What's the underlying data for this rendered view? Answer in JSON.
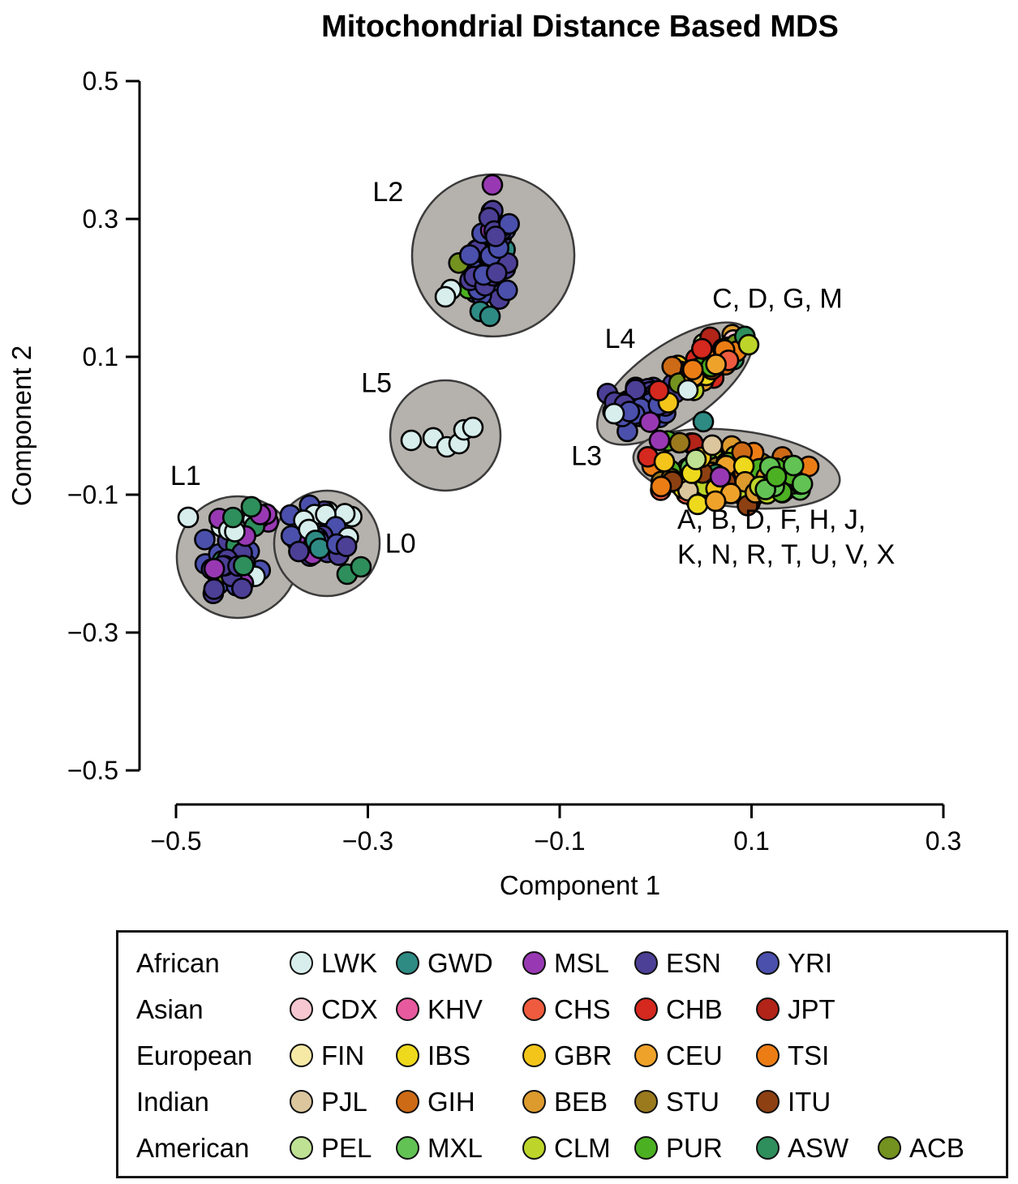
{
  "chart_data": {
    "type": "scatter",
    "title": "Mitochondrial Distance Based MDS",
    "xlabel": "Component 1",
    "ylabel": "Component 2",
    "xlim": [
      -0.58,
      0.38
    ],
    "ylim": [
      -0.5,
      0.5
    ],
    "xticks": [
      -0.5,
      -0.3,
      -0.1,
      0.1,
      0.3
    ],
    "xtick_labels": [
      "−0.5",
      "−0.3",
      "−0.1",
      "0.1",
      "0.3"
    ],
    "yticks": [
      0.5,
      0.3,
      0.1,
      -0.1,
      -0.3,
      -0.5
    ],
    "ytick_labels": [
      "0.5",
      "0.3",
      "0.1",
      "−0.1",
      "−0.3",
      "−0.5"
    ],
    "grid": false,
    "legend_position": "bottom-box",
    "render_seed": 20240613,
    "clusters": [
      {
        "id": "L1",
        "label": "L1",
        "cx": -0.4358,
        "cy": -0.1906,
        "rx": 0.0634,
        "ry": 0.0882,
        "rot": 0,
        "label_x": -0.49,
        "label_y": -0.086,
        "label_anchor": "middle"
      },
      {
        "id": "L0",
        "label": "L0",
        "cx": -0.3427,
        "cy": -0.1706,
        "rx": 0.055,
        "ry": 0.0765,
        "rot": 0,
        "label_x": -0.266,
        "label_y": -0.184,
        "label_anchor": "middle"
      },
      {
        "id": "L2",
        "label": "L2",
        "cx": -0.1693,
        "cy": 0.2471,
        "rx": 0.0846,
        "ry": 0.1176,
        "rot": 0,
        "label_x": -0.279,
        "label_y": 0.326,
        "label_anchor": "middle"
      },
      {
        "id": "L5",
        "label": "L5",
        "cx": -0.2192,
        "cy": -0.0141,
        "rx": 0.0575,
        "ry": 0.08,
        "rot": 0,
        "label_x": -0.291,
        "label_y": 0.049,
        "label_anchor": "middle"
      },
      {
        "id": "L4",
        "label": "L4",
        "cx": 0.0201,
        "cy": 0.0612,
        "rx": 0.0947,
        "ry": 0.0565,
        "rot": -35,
        "label_x": -0.037,
        "label_y": 0.113,
        "label_anchor": "middle"
      },
      {
        "id": "L3",
        "label": "L3",
        "cx": 0.0844,
        "cy": -0.0624,
        "rx": 0.1083,
        "ry": 0.0553,
        "rot": 7,
        "label_x": -0.072,
        "label_y": -0.057,
        "label_anchor": "middle"
      }
    ],
    "annotations": [
      {
        "id": "cdgm",
        "text": "C, D, G, M",
        "x": 0.127,
        "y": 0.171,
        "anchor": "middle"
      },
      {
        "id": "haplogroups-line1",
        "text": "A, B, D, F, H, J,",
        "x": 0.0226,
        "y": -0.1494,
        "anchor": "start"
      },
      {
        "id": "haplogroups-line2",
        "text": "K, N, R, T, U, V, X",
        "x": 0.0226,
        "y": -0.2,
        "anchor": "start"
      }
    ],
    "point_groups": [
      {
        "cluster": "L2",
        "n": 48,
        "cx": -0.1761,
        "cy": 0.2271,
        "sx": 0.0254,
        "sy": 0.0494,
        "rot": 0,
        "palette": {
          "YRI": 37,
          "ESN": 37,
          "MSL": 8,
          "GWD": 8,
          "ACB": 6,
          "PUR": 4
        }
      },
      {
        "cluster": "L2",
        "n": 16,
        "cx": -0.166,
        "cy": 0.2824,
        "sx": 0.0152,
        "sy": 0.0294,
        "rot": 0,
        "palette": {
          "YRI": 50,
          "ESN": 40,
          "MSL": 10
        }
      },
      {
        "cluster": "L1",
        "n": 42,
        "cx": -0.44,
        "cy": -0.2059,
        "sx": 0.0271,
        "sy": 0.0353,
        "rot": 0,
        "palette": {
          "ESN": 42,
          "YRI": 28,
          "MSL": 12,
          "ACB": 10,
          "ASW": 4,
          "LWK": 4
        }
      },
      {
        "cluster": "L1",
        "n": 14,
        "cx": -0.4298,
        "cy": -0.1471,
        "sx": 0.0355,
        "sy": 0.0188,
        "rot": 0,
        "palette": {
          "LWK": 50,
          "MSL": 22,
          "ACB": 14,
          "ASW": 14
        }
      },
      {
        "cluster": "L0",
        "n": 13,
        "cx": -0.352,
        "cy": -0.1271,
        "sx": 0.0321,
        "sy": 0.0153,
        "rot": 0,
        "palette": {
          "LWK": 66,
          "ESN": 17,
          "YRI": 17
        }
      },
      {
        "cluster": "L0",
        "n": 26,
        "cx": -0.3554,
        "cy": -0.1682,
        "sx": 0.0304,
        "sy": 0.0212,
        "rot": 0,
        "palette": {
          "ESN": 38,
          "YRI": 38,
          "LWK": 12,
          "MSL": 6,
          "GWD": 6
        }
      },
      {
        "cluster": "L4",
        "n": 44,
        "cx": -0.0112,
        "cy": 0.0353,
        "sx": 0.0372,
        "sy": 0.0294,
        "rot": -20,
        "palette": {
          "ESN": 44,
          "YRI": 44,
          "GWD": 5,
          "MSL": 3,
          "LWK": 4
        }
      },
      {
        "cluster": "L4",
        "n": 58,
        "cx": 0.0488,
        "cy": 0.0906,
        "sx": 0.0474,
        "sy": 0.0294,
        "rot": -33,
        "palette": {
          "MXL": 11,
          "PUR": 10,
          "ASW": 9,
          "ACB": 7,
          "CLM": 6,
          "PEL": 3,
          "TSI": 8,
          "CEU": 7,
          "GBR": 5,
          "IBS": 5,
          "FIN": 2,
          "CHB": 6,
          "JPT": 4,
          "CHS": 4,
          "CDX": 3,
          "KHV": 2,
          "GIH": 5,
          "STU": 4,
          "BEB": 4,
          "ITU": 3,
          "PJL": 2
        }
      },
      {
        "cluster": "L3",
        "n": 95,
        "cx": 0.0759,
        "cy": -0.0671,
        "sx": 0.0778,
        "sy": 0.0388,
        "rot": 7,
        "palette": {
          "TSI": 12,
          "CEU": 11,
          "GBR": 7,
          "IBS": 7,
          "FIN": 2,
          "GIH": 6,
          "BEB": 6,
          "STU": 5,
          "ITU": 4,
          "PJL": 3,
          "MXL": 7,
          "PUR": 7,
          "CLM": 6,
          "ASW": 4,
          "ACB": 4,
          "PEL": 2,
          "CHB": 3,
          "JPT": 2,
          "CHS": 3,
          "KHV": 1,
          "CDX": 1,
          "MSL": 2,
          "GWD": 2
        }
      },
      {
        "cluster": "L3",
        "n": 20,
        "cx": 0.13,
        "cy": -0.0788,
        "sx": 0.0355,
        "sy": 0.0306,
        "rot": 0,
        "palette": {
          "MXL": 32,
          "PUR": 34,
          "CLM": 16,
          "ASW": 10,
          "TSI": 8
        }
      }
    ],
    "extra_points": [
      {
        "pop": "MSL",
        "x": -0.1702,
        "y": 0.3494
      },
      {
        "pop": "LWK",
        "x": -0.2133,
        "y": 0.1976
      },
      {
        "pop": "LWK",
        "x": -0.2192,
        "y": 0.1871
      },
      {
        "pop": "GWD",
        "x": -0.1829,
        "y": 0.1659
      },
      {
        "pop": "GWD",
        "x": -0.1727,
        "y": 0.1588
      },
      {
        "pop": "LWK",
        "x": -0.4873,
        "y": -0.1329
      },
      {
        "pop": "ASW",
        "x": -0.4214,
        "y": -0.1176
      },
      {
        "pop": "ASW",
        "x": -0.3216,
        "y": -0.2153
      },
      {
        "pop": "ASW",
        "x": -0.3072,
        "y": -0.2047
      },
      {
        "pop": "LWK",
        "x": -0.2548,
        "y": -0.0212
      },
      {
        "pop": "LWK",
        "x": -0.2319,
        "y": -0.0176
      },
      {
        "pop": "LWK",
        "x": -0.2176,
        "y": -0.0306
      },
      {
        "pop": "LWK",
        "x": -0.2049,
        "y": -0.0259
      },
      {
        "pop": "LWK",
        "x": -0.1998,
        "y": -0.0059
      },
      {
        "pop": "LWK",
        "x": -0.1905,
        "y": -0.0024
      },
      {
        "pop": "CLM",
        "x": 0.097,
        "y": 0.1176
      },
      {
        "pop": "LWK",
        "x": 0.0336,
        "y": 0.0518
      },
      {
        "pop": "LWK",
        "x": -0.0433,
        "y": 0.0176
      },
      {
        "pop": "GWD",
        "x": 0.0497,
        "y": 0.0059
      },
      {
        "pop": "MSL",
        "x": 0.004,
        "y": -0.0212
      },
      {
        "pop": "STU",
        "x": 0.0252,
        "y": -0.0247
      },
      {
        "pop": "PJL",
        "x": 0.059,
        "y": -0.0282
      },
      {
        "pop": "MSL",
        "x": 0.0675,
        "y": -0.0741
      },
      {
        "pop": "TSI",
        "x": 0.0057,
        "y": -0.0882
      },
      {
        "pop": "IBS",
        "x": 0.0438,
        "y": -0.1141
      },
      {
        "pop": "CEU",
        "x": 0.0624,
        "y": -0.1094
      }
    ]
  },
  "populations": {
    "LWK": "#d7eeec",
    "GWD": "#2e8b84",
    "MSL": "#9839b3",
    "ESN": "#4c3f96",
    "YRI": "#4a50ac",
    "CDX": "#f6c7d0",
    "KHV": "#e85a9e",
    "CHS": "#ef5b3e",
    "CHB": "#d5281e",
    "JPT": "#b22318",
    "FIN": "#f6e9a5",
    "IBS": "#eed91c",
    "GBR": "#f3c51a",
    "CEU": "#efa22a",
    "TSI": "#ec7d15",
    "PJL": "#dcc69e",
    "GIH": "#cd6a16",
    "BEB": "#dd9b2e",
    "STU": "#9b7a1e",
    "ITU": "#8d4012",
    "PEL": "#bfe193",
    "MXL": "#62c354",
    "CLM": "#bdd52a",
    "PUR": "#4cb122",
    "ASW": "#2e8f5c",
    "ACB": "#73921f"
  },
  "legend": {
    "rows": [
      {
        "group": "African",
        "items": [
          "LWK",
          "GWD",
          "MSL",
          "ESN",
          "YRI"
        ]
      },
      {
        "group": "Asian",
        "items": [
          "CDX",
          "KHV",
          "CHS",
          "CHB",
          "JPT"
        ]
      },
      {
        "group": "European",
        "items": [
          "FIN",
          "IBS",
          "GBR",
          "CEU",
          "TSI"
        ]
      },
      {
        "group": "Indian",
        "items": [
          "PJL",
          "GIH",
          "BEB",
          "STU",
          "ITU"
        ]
      },
      {
        "group": "American",
        "items": [
          "PEL",
          "MXL",
          "CLM",
          "PUR",
          "ASW",
          "ACB"
        ]
      }
    ]
  },
  "style": {
    "cluster_fill": "#b5b1ac",
    "cluster_stroke": "#3b3b3b",
    "point_stroke": "#000000",
    "axis_color": "#000000"
  }
}
